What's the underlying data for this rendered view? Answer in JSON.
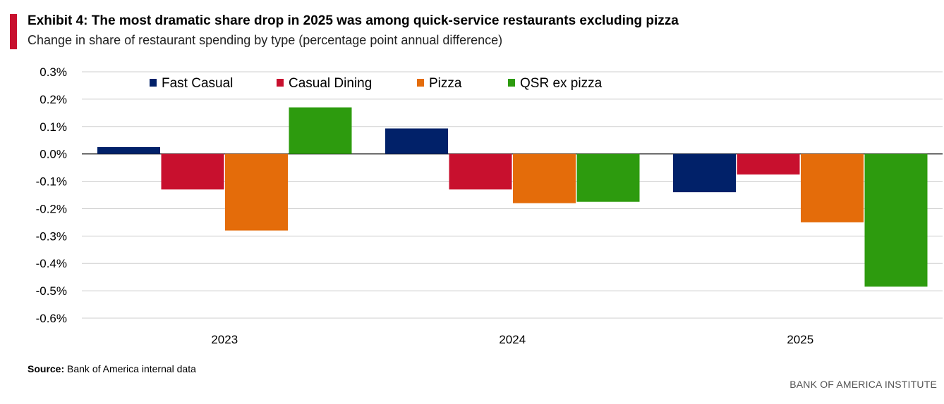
{
  "header": {
    "title": "Exhibit 4: The most dramatic share drop in 2025 was among quick-service restaurants excluding pizza",
    "subtitle": "Change in share of restaurant spending by type (percentage point annual difference)",
    "accent_color": "#c8102e"
  },
  "chart_data": {
    "type": "bar",
    "title": "Exhibit 4: The most dramatic share drop in 2025 was among quick-service restaurants excluding pizza",
    "subtitle": "Change in share of restaurant spending by type (percentage point annual difference)",
    "xlabel": "",
    "ylabel": "",
    "categories": [
      "2023",
      "2024",
      "2025"
    ],
    "series": [
      {
        "name": "Fast Casual",
        "color": "#012169",
        "values": [
          0.025,
          0.093,
          -0.14
        ]
      },
      {
        "name": "Casual Dining",
        "color": "#c8102e",
        "values": [
          -0.13,
          -0.13,
          -0.075
        ]
      },
      {
        "name": "Pizza",
        "color": "#e46c0a",
        "values": [
          -0.28,
          -0.18,
          -0.25
        ]
      },
      {
        "name": "QSR ex pizza",
        "color": "#2d9b0e",
        "values": [
          0.17,
          -0.175,
          -0.485
        ]
      }
    ],
    "ylim": [
      -0.6,
      0.3
    ],
    "yticks": [
      0.3,
      0.2,
      0.1,
      0.0,
      -0.1,
      -0.2,
      -0.3,
      -0.4,
      -0.5,
      -0.6
    ],
    "ytick_labels": [
      "0.3%",
      "0.2%",
      "0.1%",
      "0.0%",
      "-0.1%",
      "-0.2%",
      "-0.3%",
      "-0.4%",
      "-0.5%",
      "-0.6%"
    ],
    "grid": true,
    "legend_position": "top"
  },
  "footer": {
    "source_label": "Source:",
    "source_text": " Bank of America internal data",
    "brand": "BANK OF AMERICA INSTITUTE"
  }
}
